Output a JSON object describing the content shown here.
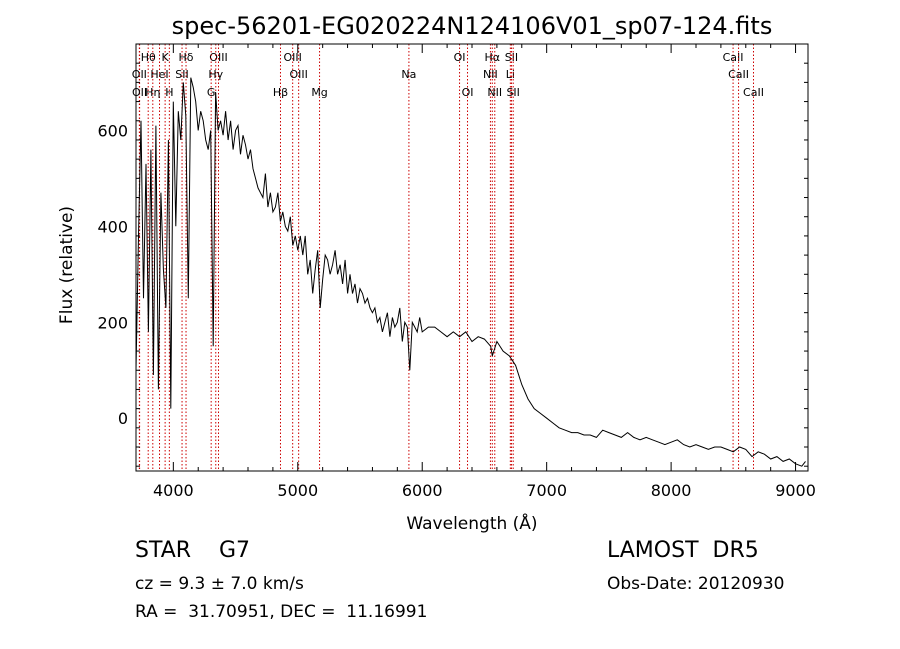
{
  "chart_data": {
    "type": "line",
    "title": "spec-56201-EG020224N124106V01_sp07-124.fits",
    "xlabel": "Wavelength (Å)",
    "ylabel": "Flux (relative)",
    "xlim": [
      3700,
      9100
    ],
    "ylim": [
      -110,
      780
    ],
    "xticks": [
      4000,
      5000,
      6000,
      7000,
      8000,
      9000
    ],
    "yticks": [
      0,
      200,
      400,
      600
    ],
    "line_color": "#000000",
    "marker_color": "#cc0000",
    "series": [
      {
        "x": [
          3700,
          3720,
          3740,
          3760,
          3780,
          3800,
          3820,
          3840,
          3860,
          3880,
          3900,
          3920,
          3940,
          3960,
          3980,
          4000,
          4020,
          4040,
          4060,
          4080,
          4100,
          4120,
          4140,
          4160,
          4180,
          4200,
          4220,
          4240,
          4260,
          4280,
          4300,
          4320,
          4340,
          4360,
          4380,
          4400,
          4420,
          4440,
          4460,
          4480,
          4500,
          4520,
          4540,
          4560,
          4580,
          4600,
          4620,
          4640,
          4660,
          4680,
          4700,
          4720,
          4740,
          4760,
          4780,
          4800,
          4820,
          4840,
          4860,
          4880,
          4900,
          4920,
          4940,
          4960,
          4980,
          5000,
          5020,
          5040,
          5060,
          5080,
          5100,
          5120,
          5140,
          5160,
          5180,
          5200,
          5220,
          5240,
          5260,
          5280,
          5300,
          5320,
          5340,
          5360,
          5380,
          5400,
          5420,
          5440,
          5460,
          5480,
          5500,
          5520,
          5540,
          5560,
          5580,
          5600,
          5620,
          5640,
          5660,
          5680,
          5700,
          5720,
          5740,
          5760,
          5780,
          5800,
          5820,
          5840,
          5860,
          5880,
          5900,
          5920,
          5940,
          5960,
          5980,
          6000,
          6050,
          6100,
          6150,
          6200,
          6250,
          6300,
          6350,
          6400,
          6450,
          6500,
          6550,
          6563,
          6600,
          6650,
          6700,
          6750,
          6800,
          6850,
          6900,
          6950,
          7000,
          7050,
          7100,
          7150,
          7200,
          7250,
          7300,
          7350,
          7400,
          7450,
          7500,
          7550,
          7600,
          7650,
          7700,
          7750,
          7800,
          7850,
          7900,
          7950,
          8000,
          8050,
          8100,
          8150,
          8200,
          8250,
          8300,
          8350,
          8400,
          8450,
          8500,
          8550,
          8600,
          8650,
          8700,
          8750,
          8800,
          8850,
          8900,
          8950,
          9000,
          9050,
          9080
        ],
        "y": [
          100,
          380,
          620,
          250,
          530,
          180,
          560,
          90,
          610,
          60,
          470,
          310,
          230,
          580,
          20,
          660,
          400,
          640,
          580,
          700,
          630,
          250,
          710,
          690,
          660,
          600,
          640,
          620,
          580,
          560,
          600,
          150,
          680,
          600,
          620,
          590,
          640,
          580,
          620,
          560,
          600,
          610,
          550,
          590,
          570,
          540,
          560,
          520,
          500,
          480,
          470,
          460,
          510,
          440,
          470,
          430,
          440,
          470,
          410,
          430,
          400,
          390,
          420,
          360,
          380,
          350,
          380,
          340,
          380,
          300,
          330,
          260,
          310,
          350,
          230,
          290,
          340,
          330,
          300,
          320,
          350,
          300,
          320,
          280,
          330,
          260,
          300,
          260,
          280,
          240,
          270,
          260,
          240,
          250,
          230,
          220,
          230,
          200,
          210,
          180,
          200,
          220,
          170,
          210,
          190,
          200,
          230,
          160,
          200,
          190,
          100,
          200,
          190,
          180,
          210,
          180,
          190,
          190,
          180,
          170,
          180,
          170,
          180,
          160,
          170,
          165,
          150,
          130,
          160,
          140,
          130,
          110,
          70,
          40,
          20,
          10,
          0,
          -10,
          -20,
          -25,
          -30,
          -30,
          -35,
          -35,
          -40,
          -25,
          -30,
          -35,
          -40,
          -30,
          -40,
          -45,
          -40,
          -45,
          -50,
          -55,
          -50,
          -45,
          -55,
          -60,
          -55,
          -60,
          -65,
          -60,
          -60,
          -65,
          -70,
          -60,
          -65,
          -80,
          -70,
          -75,
          -85,
          -80,
          -90,
          -85,
          -95,
          -100,
          -90
        ]
      }
    ],
    "lines": [
      {
        "label": "Hθ",
        "x": 3798,
        "row": 0
      },
      {
        "label": "K",
        "x": 3934,
        "row": 0
      },
      {
        "label": "Hδ",
        "x": 4102,
        "row": 0
      },
      {
        "label": "OIII",
        "x": 4363,
        "row": 0
      },
      {
        "label": "OIII",
        "x": 4959,
        "row": 0
      },
      {
        "label": "OI",
        "x": 6300,
        "row": 0
      },
      {
        "label": "Hα",
        "x": 6563,
        "row": 0
      },
      {
        "label": "SII",
        "x": 6717,
        "row": 0
      },
      {
        "label": "CaII",
        "x": 8498,
        "row": 0
      },
      {
        "label": "OII",
        "x": 3727,
        "row": 1
      },
      {
        "label": "HeI",
        "x": 3889,
        "row": 1
      },
      {
        "label": "SII",
        "x": 4070,
        "row": 1
      },
      {
        "label": "Hγ",
        "x": 4341,
        "row": 1
      },
      {
        "label": "OIII",
        "x": 5007,
        "row": 1
      },
      {
        "label": "Na",
        "x": 5893,
        "row": 1
      },
      {
        "label": "NII",
        "x": 6548,
        "row": 1
      },
      {
        "label": "Li",
        "x": 6708,
        "row": 1
      },
      {
        "label": "CaII",
        "x": 8542,
        "row": 1
      },
      {
        "label": "OII",
        "x": 3729,
        "row": 2
      },
      {
        "label": "Hη",
        "x": 3835,
        "row": 2
      },
      {
        "label": "H",
        "x": 3968,
        "row": 2
      },
      {
        "label": "G",
        "x": 4304,
        "row": 2
      },
      {
        "label": "Hβ",
        "x": 4861,
        "row": 2
      },
      {
        "label": "Mg",
        "x": 5175,
        "row": 2
      },
      {
        "label": "OI",
        "x": 6364,
        "row": 2
      },
      {
        "label": "NII",
        "x": 6583,
        "row": 2
      },
      {
        "label": "SII",
        "x": 6731,
        "row": 2
      },
      {
        "label": "CaII",
        "x": 8662,
        "row": 2
      }
    ]
  },
  "footer": {
    "object_type": "STAR    G7",
    "survey": "LAMOST  DR5",
    "cz": "cz = 9.3 ± 7.0 km/s",
    "obs_date": "Obs-Date: 20120930",
    "radec": "RA =  31.70951, DEC =  11.16991"
  }
}
